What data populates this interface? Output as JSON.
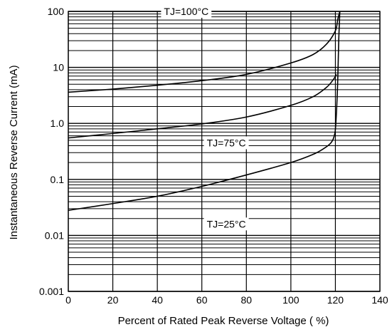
{
  "chart_data": {
    "type": "line",
    "title": "",
    "xlabel": "Percent of Rated Peak Reverse Voltage ( %)",
    "ylabel": "Instantaneous Reverse Current (mA)",
    "xlim": [
      0,
      140
    ],
    "ylim": [
      0.001,
      100
    ],
    "yscale": "log",
    "grid": true,
    "x_ticks": [
      "0",
      "20",
      "40",
      "60",
      "80",
      "100",
      "120",
      "140"
    ],
    "x_tick_values": [
      0,
      20,
      40,
      60,
      80,
      100,
      120,
      140
    ],
    "y_ticks": [
      "0.001",
      "0.01",
      "0.1",
      "1.0",
      "10",
      "100"
    ],
    "y_tick_values": [
      0.001,
      0.01,
      0.1,
      1,
      10,
      100
    ],
    "colors": {
      "line": "#000000",
      "grid": "#000000",
      "background": "#ffffff"
    },
    "series": [
      {
        "label": "TJ=100°C",
        "label_at": [
          53,
          100
        ],
        "x": [
          0,
          20,
          40,
          60,
          80,
          100,
          110,
          116,
          120,
          121,
          122
        ],
        "y": [
          3.6,
          4.1,
          4.8,
          5.8,
          7.5,
          12,
          17,
          26,
          45,
          70,
          100
        ]
      },
      {
        "label": "TJ=75°C",
        "label_at": [
          71,
          0.45
        ],
        "x": [
          0,
          20,
          40,
          60,
          80,
          100,
          110,
          116,
          119,
          120.5
        ],
        "y": [
          0.55,
          0.66,
          0.8,
          0.98,
          1.3,
          2.1,
          3.0,
          4.4,
          6.0,
          7.5
        ]
      },
      {
        "label": "TJ=25°C",
        "label_at": [
          71,
          0.016
        ],
        "x": [
          0,
          20,
          40,
          60,
          80,
          100,
          110,
          115,
          118,
          119.5,
          120.2,
          121,
          121.5,
          122
        ],
        "y": [
          0.028,
          0.037,
          0.05,
          0.075,
          0.12,
          0.2,
          0.28,
          0.36,
          0.45,
          0.6,
          1.0,
          5,
          30,
          100
        ]
      }
    ]
  }
}
